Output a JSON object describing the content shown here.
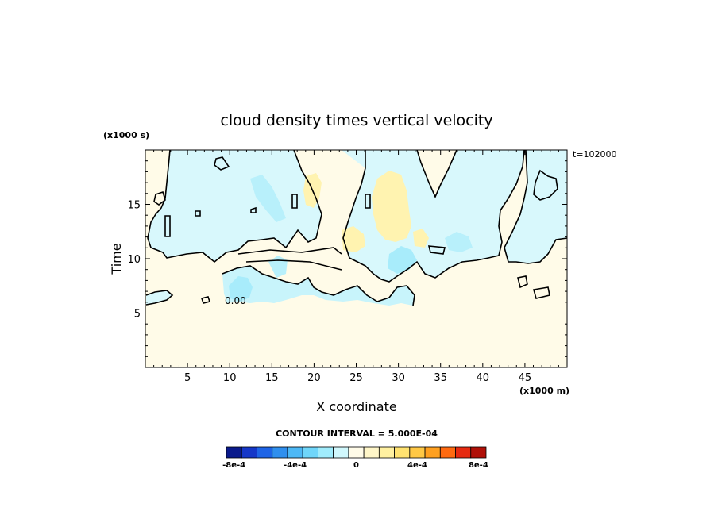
{
  "chart_data": {
    "type": "heatmap",
    "title": "cloud density times vertical velocity",
    "xlabel": "X coordinate",
    "ylabel": "Time",
    "x_unit": "(x1000 m)",
    "y_unit": "(x1000 s)",
    "time_label": "t=102000",
    "xlim": [
      0,
      50
    ],
    "ylim": [
      0,
      20
    ],
    "x_ticks": [
      5,
      10,
      15,
      20,
      25,
      30,
      35,
      40,
      45
    ],
    "y_ticks": [
      5,
      10,
      15
    ],
    "x_tick_labels": [
      "5",
      "10",
      "15",
      "20",
      "25",
      "30",
      "35",
      "40",
      "45"
    ],
    "y_tick_labels": [
      "5",
      "10",
      "15"
    ],
    "contour_interval_text": "CONTOUR INTERVAL = 5.000E-04",
    "contour_label": "0.00",
    "colorbar": {
      "colors": [
        "#0a1a8c",
        "#1537c8",
        "#1e64e6",
        "#2f8fee",
        "#4db8f5",
        "#6fd6fa",
        "#a0ecfc",
        "#d0f8fd",
        "#fffbe8",
        "#fff6c8",
        "#fff0a0",
        "#ffe270",
        "#ffc845",
        "#ffa020",
        "#ff6a10",
        "#e62a10",
        "#b01008"
      ],
      "labels": [
        "-8e-4",
        "-4e-4",
        "0",
        "4e-4",
        "8e-4"
      ],
      "label_values": [
        -0.0008,
        -0.0004,
        0,
        0.0004,
        0.0008
      ]
    },
    "regions": [
      {
        "value": 0.0,
        "color": "#fffbe8",
        "description": "background zero"
      },
      {
        "value": -0.0001,
        "color": "#d0f8fd",
        "description": "upper negative band"
      },
      {
        "value": -0.0002,
        "color": "#a0ecfc",
        "description": "negative patches"
      },
      {
        "value": 0.0001,
        "color": "#fff6c8",
        "description": "positive core"
      },
      {
        "value": 0.0002,
        "color": "#fff0a0",
        "description": "positive core peak"
      }
    ]
  }
}
